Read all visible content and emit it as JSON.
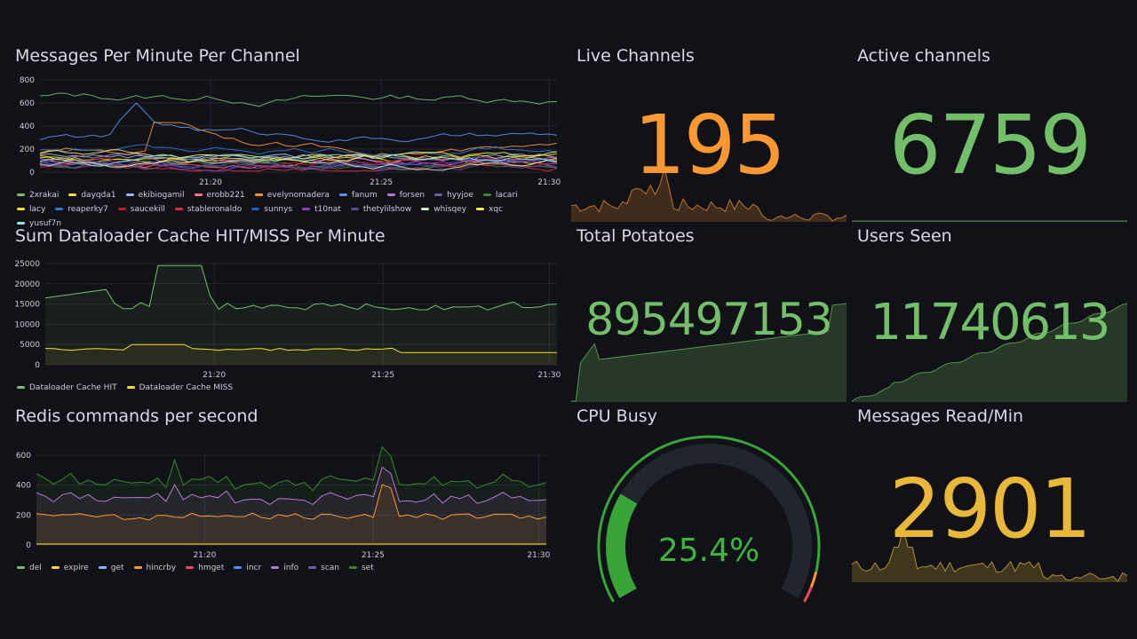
{
  "colors": {
    "background": "#111217",
    "grid": "#25272e",
    "orange": "#ff9830",
    "green": "#73bf69",
    "yellow": "#fade2a",
    "gold": "#eab839",
    "gauge_green": "#37a537",
    "gauge_track": "#22252b"
  },
  "panels": {
    "messages_per_minute": {
      "title": "Messages Per Minute Per Channel",
      "y_ticks": [
        "800",
        "600",
        "400",
        "200",
        "0"
      ],
      "x_ticks": [
        "21:20",
        "21:25",
        "21:30"
      ],
      "legend": [
        {
          "name": "2xrakai",
          "color": "#73bf69"
        },
        {
          "name": "dayqda1",
          "color": "#fade2a"
        },
        {
          "name": "ekibiogamil",
          "color": "#8ab8ff"
        },
        {
          "name": "erobb221",
          "color": "#ff7383"
        },
        {
          "name": "evelynomadera",
          "color": "#ff9830"
        },
        {
          "name": "fanum",
          "color": "#5794f2"
        },
        {
          "name": "forsen",
          "color": "#b877d9"
        },
        {
          "name": "hyyjoe",
          "color": "#705da0"
        },
        {
          "name": "lacari",
          "color": "#37872d"
        },
        {
          "name": "lacy",
          "color": "#fade2a"
        },
        {
          "name": "reaperky7",
          "color": "#3274d9"
        },
        {
          "name": "saucekill",
          "color": "#c4162a"
        },
        {
          "name": "stableronaldo",
          "color": "#e02f44"
        },
        {
          "name": "sunnys",
          "color": "#1f60c4"
        },
        {
          "name": "t10nat",
          "color": "#8f3bb8"
        },
        {
          "name": "thetylilshow",
          "color": "#5e4a8f"
        },
        {
          "name": "whisqey",
          "color": "#c8f2c2"
        },
        {
          "name": "xqc",
          "color": "#ffee52"
        },
        {
          "name": "yusuf7n",
          "color": "#8ae7f5"
        }
      ]
    },
    "dataloader_cache": {
      "title": "Sum Dataloader Cache HIT/MISS Per Minute",
      "y_ticks": [
        "25000",
        "20000",
        "15000",
        "10000",
        "5000",
        "0"
      ],
      "x_ticks": [
        "21:20",
        "21:25",
        "21:30"
      ],
      "legend": [
        {
          "name": "Dataloader Cache HIT",
          "color": "#73bf69"
        },
        {
          "name": "Dataloader Cache MISS",
          "color": "#fade2a"
        }
      ]
    },
    "redis_commands": {
      "title": "Redis commands per second",
      "y_ticks": [
        "600",
        "400",
        "200",
        "0"
      ],
      "x_ticks": [
        "21:20",
        "21:25",
        "21:30"
      ],
      "legend": [
        {
          "name": "del",
          "color": "#73bf69"
        },
        {
          "name": "expire",
          "color": "#fade2a"
        },
        {
          "name": "get",
          "color": "#8ab8ff"
        },
        {
          "name": "hincrby",
          "color": "#ff9830"
        },
        {
          "name": "hmget",
          "color": "#f2495c"
        },
        {
          "name": "incr",
          "color": "#5794f2"
        },
        {
          "name": "info",
          "color": "#b877d9"
        },
        {
          "name": "scan",
          "color": "#705da0"
        },
        {
          "name": "set",
          "color": "#37872d"
        }
      ]
    },
    "live_channels": {
      "title": "Live Channels",
      "value": "195",
      "color": "#ff9830"
    },
    "active_channels": {
      "title": "Active channels",
      "value": "6759",
      "color": "#73bf69"
    },
    "total_potatoes": {
      "title": "Total Potatoes",
      "value": "895497153",
      "color": "#73bf69"
    },
    "users_seen": {
      "title": "Users Seen",
      "value": "11740613",
      "color": "#73bf69"
    },
    "cpu_busy": {
      "title": "CPU Busy",
      "value": "25.4%",
      "percent": 25.4
    },
    "messages_read": {
      "title": "Messages Read/Min",
      "value": "2901",
      "color": "#eab839"
    }
  }
}
